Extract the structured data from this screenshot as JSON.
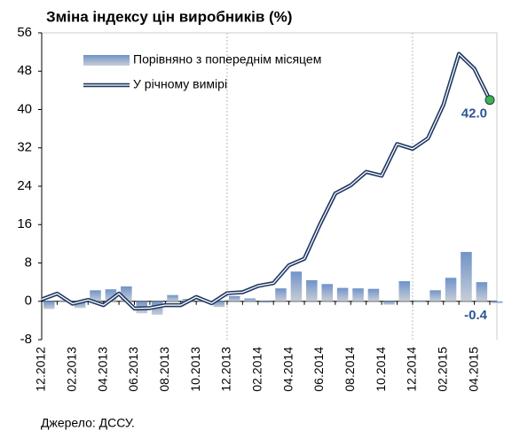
{
  "chart_data": {
    "type": "bar_line",
    "title": "Зміна індексу цін виробників (%)",
    "source": "Джерело: ДССУ.",
    "categories": [
      "12.2012",
      null,
      "02.2013",
      null,
      "04.2013",
      null,
      "06.2013",
      null,
      "08.2013",
      null,
      "10.2013",
      null,
      "12.2013",
      null,
      "02.2014",
      null,
      "04.2014",
      null,
      "06.2014",
      null,
      "08.2014",
      null,
      "10.2014",
      null,
      "12.2014",
      null,
      "02.2015",
      null,
      "04.2015",
      null
    ],
    "series": [
      {
        "name": "Порівняно з попереднім місяцем",
        "color": "#6f93c9",
        "kind": "bar",
        "values": [
          -1.6,
          0.2,
          -1.4,
          2.3,
          2.5,
          3.1,
          -2.5,
          -2.8,
          1.3,
          0.5,
          0.3,
          -1.2,
          1.1,
          0.6,
          -0.3,
          2.7,
          6.2,
          4.4,
          3.6,
          2.8,
          2.7,
          2.6,
          -0.7,
          4.2,
          0.2,
          2.3,
          4.9,
          10.3,
          4.0,
          -0.4
        ],
        "value_labels": [
          null,
          null,
          null,
          null,
          null,
          null,
          null,
          null,
          null,
          null,
          null,
          null,
          null,
          null,
          null,
          null,
          null,
          null,
          null,
          null,
          null,
          null,
          null,
          null,
          null,
          null,
          null,
          null,
          null,
          "-0.4"
        ]
      },
      {
        "name": "У річному вимірі",
        "color": "#1f3864",
        "kind": "line",
        "marker_color": "#3cb44b",
        "values": [
          0.4,
          1.6,
          -0.5,
          0.3,
          -0.8,
          1.6,
          -1.5,
          -1.4,
          -0.8,
          -0.8,
          0.9,
          -0.4,
          1.7,
          1.9,
          3.2,
          3.8,
          7.5,
          8.9,
          16.0,
          22.5,
          24.2,
          27.0,
          26.2,
          32.8,
          31.8,
          34.0,
          41.0,
          51.6,
          48.5,
          42.0
        ],
        "value_labels": [
          null,
          null,
          null,
          null,
          null,
          null,
          null,
          null,
          null,
          null,
          null,
          null,
          null,
          null,
          null,
          null,
          null,
          null,
          null,
          null,
          null,
          null,
          null,
          null,
          null,
          null,
          null,
          null,
          null,
          "42.0"
        ]
      }
    ],
    "ylim": [
      -8,
      56
    ],
    "yticks": [
      -8,
      0,
      8,
      16,
      24,
      32,
      40,
      48,
      56
    ]
  }
}
